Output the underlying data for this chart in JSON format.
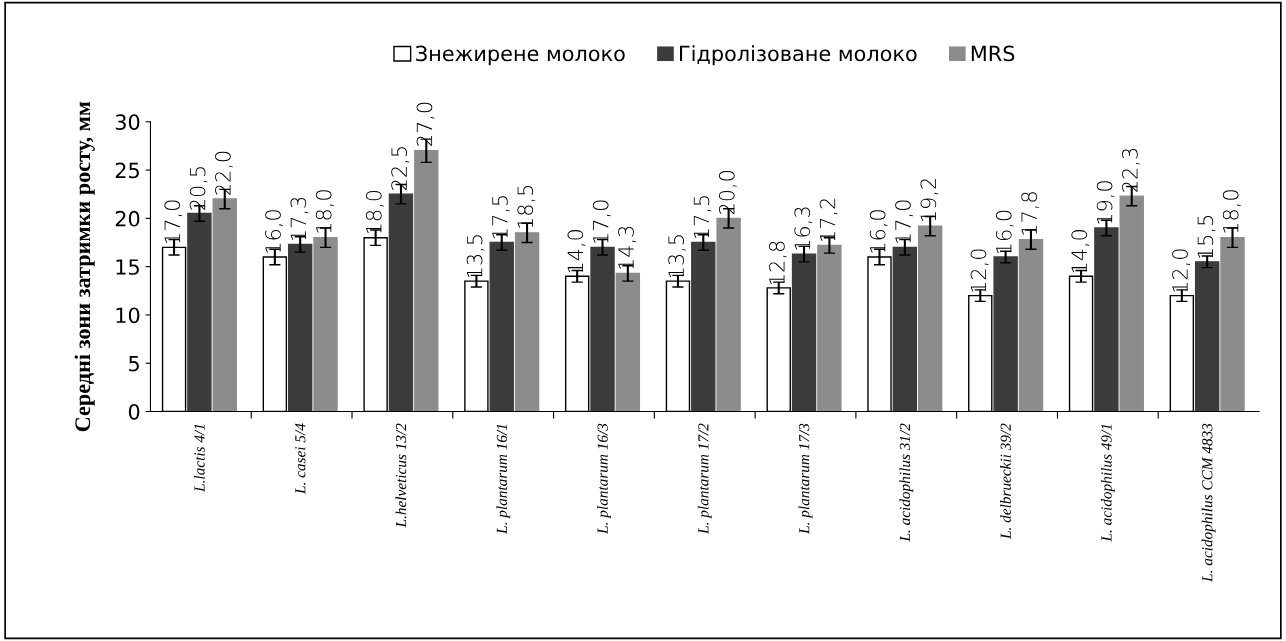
{
  "chart_data": {
    "type": "bar",
    "ylabel": "Середні зони затримки росту, мм",
    "categories": [
      "L.lactis 4/1",
      "L. casei 5/4",
      "L.helveticus 13/2",
      "L. plantarum 16/1",
      "L. plantarum 16/3",
      "L. plantarum 17/2",
      "L. plantarum 17/3",
      "L. acidophilus 31/2",
      "L. delbrueckii 39/2",
      "L. acidophilus 49/1",
      "L. acidophilus CCM 4833"
    ],
    "series": [
      {
        "name": "Знежирене молоко",
        "color": "#ffffff",
        "values": [
          17.0,
          16.0,
          18.0,
          13.5,
          14.0,
          13.5,
          12.8,
          16.0,
          12.0,
          14.0,
          12.0
        ],
        "errors": [
          0.8,
          0.8,
          0.8,
          0.6,
          0.6,
          0.6,
          0.6,
          0.8,
          0.6,
          0.6,
          0.6
        ],
        "value_labels": [
          "17,0",
          "16,0",
          "18,0",
          "13,5",
          "14,0",
          "13,5",
          "12,8",
          "16,0",
          "12,0",
          "14,0",
          "12,0"
        ]
      },
      {
        "name": "Гідролізоване молоко",
        "color": "#3c3c3c",
        "values": [
          20.5,
          17.3,
          22.5,
          17.5,
          17.0,
          17.5,
          16.3,
          17.0,
          16.0,
          19.0,
          15.5
        ],
        "errors": [
          0.8,
          0.8,
          1.0,
          0.8,
          0.8,
          0.8,
          0.8,
          0.8,
          0.6,
          0.8,
          0.6
        ],
        "value_labels": [
          "20,5",
          "17,3",
          "22,5",
          "17,5",
          "17,0",
          "17,5",
          "16,3",
          "17,0",
          "16,0",
          "19,0",
          "15,5"
        ]
      },
      {
        "name": "MRS",
        "color": "#8c8c8c",
        "values": [
          22.0,
          18.0,
          27.0,
          18.5,
          14.3,
          20.0,
          17.2,
          19.2,
          17.8,
          22.3,
          18.0
        ],
        "errors": [
          1.0,
          1.0,
          1.2,
          1.0,
          0.8,
          1.0,
          0.8,
          1.0,
          1.0,
          1.0,
          1.0
        ],
        "value_labels": [
          "22,0",
          "18,0",
          "27,0",
          "18,5",
          "14,3",
          "20,0",
          "17,2",
          "19,2",
          "17,8",
          "22,3",
          "18,0"
        ]
      }
    ],
    "ylim": [
      0,
      30
    ],
    "yticks": [
      0,
      5,
      10,
      15,
      20,
      25,
      30
    ],
    "legend": "top",
    "grid": false
  }
}
